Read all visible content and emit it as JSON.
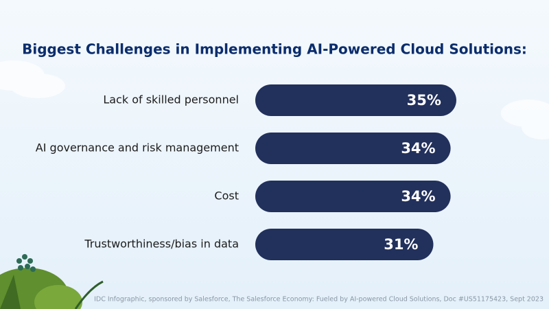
{
  "chart_data": {
    "type": "bar",
    "orientation": "horizontal",
    "title": "Biggest Challenges in Implementing AI-Powered Cloud Solutions:",
    "categories": [
      "Lack of skilled personnel",
      "AI governance and risk management",
      "Cost",
      "Trustworthiness/bias in data"
    ],
    "values": [
      35,
      34,
      34,
      31
    ],
    "value_labels": [
      "35%",
      "34%",
      "34%",
      "31%"
    ],
    "color": "#22305c",
    "source": "IDC Infographic, sponsored by Salesforce, The Salesforce Economy: Fueled by AI-powered Cloud Solutions, Doc #US51175423, Sept 2023"
  }
}
